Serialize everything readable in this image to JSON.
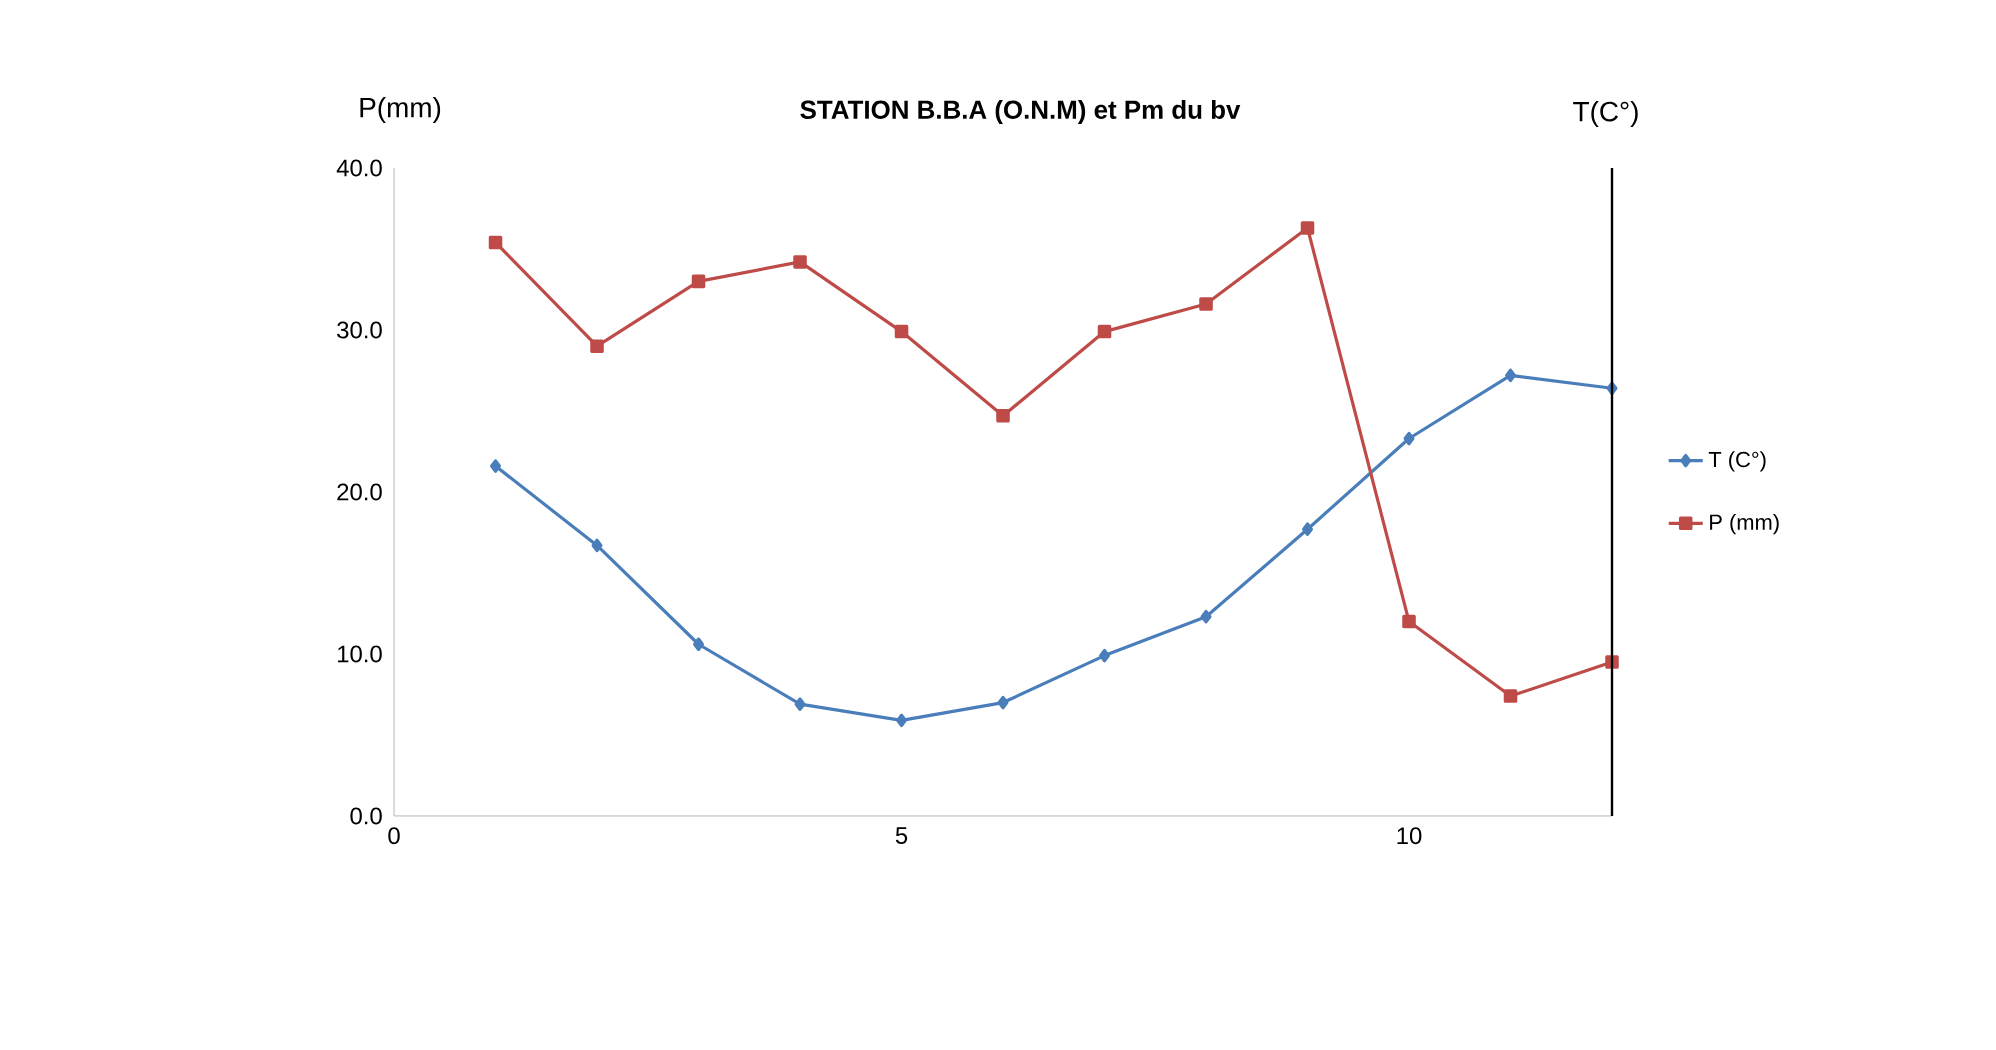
{
  "chart_data": {
    "type": "line",
    "title": "STATION B.B.A (O.N.M) et Pm du bv",
    "ylabel": "P(mm)",
    "y2label": "T(C°)",
    "x": [
      1,
      2,
      3,
      4,
      5,
      6,
      7,
      8,
      9,
      10,
      11,
      12
    ],
    "series": [
      {
        "name": "T (C°)",
        "color": "#4a7ebb",
        "marker": "diamond",
        "values": [
          21.6,
          16.7,
          10.6,
          6.9,
          5.9,
          7.0,
          9.9,
          12.3,
          17.7,
          23.3,
          27.2,
          26.4
        ]
      },
      {
        "name": "P (mm)",
        "color": "#be4b48",
        "marker": "square",
        "values": [
          35.4,
          29.0,
          33.0,
          34.2,
          29.9,
          24.7,
          29.9,
          31.6,
          36.3,
          12.0,
          7.4,
          9.5
        ]
      }
    ],
    "xlim": [
      0,
      12
    ],
    "xticks": [
      0,
      5,
      10
    ],
    "ylim": [
      0,
      40
    ],
    "yticks": [
      {
        "value": 0,
        "label": "0.0"
      },
      {
        "value": 10,
        "label": "10.0"
      },
      {
        "value": 20,
        "label": "20.0"
      },
      {
        "value": 30,
        "label": "30.0"
      },
      {
        "value": 40,
        "label": "40.0"
      }
    ],
    "grid": false,
    "legend": "right",
    "line_style": "solid"
  }
}
